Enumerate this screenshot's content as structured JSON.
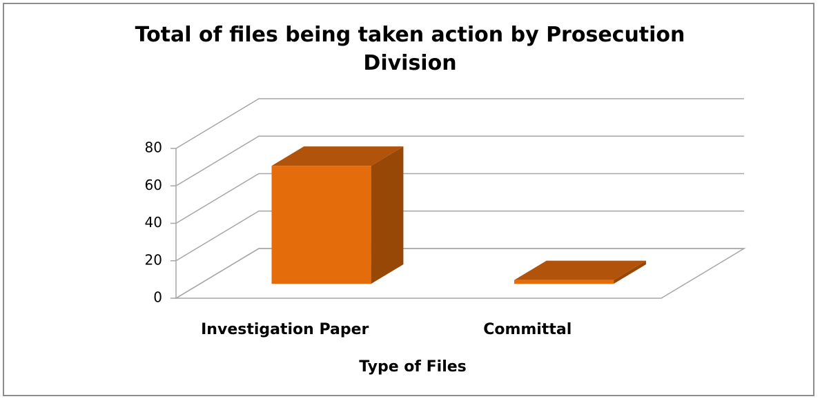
{
  "chart_data": {
    "type": "bar3d",
    "title": "Total of files being taken action by Prosecution Division",
    "x_label": "Type of Files",
    "categories": [
      "Investigation Paper",
      "Committal"
    ],
    "values": [
      63,
      2
    ],
    "color": "#e46c0a",
    "ylim": [
      0,
      80
    ],
    "yticks": [
      0,
      20,
      40,
      60,
      80
    ],
    "grid": true
  }
}
